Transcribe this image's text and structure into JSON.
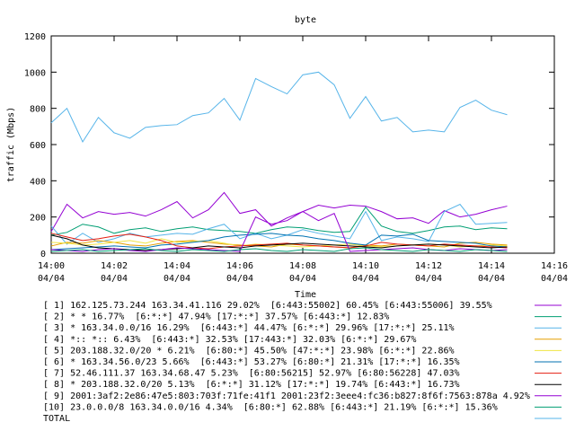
{
  "chart_data": {
    "type": "line",
    "title": "byte",
    "xlabel": "Time",
    "ylabel": "traffic (Mbps)",
    "x": [
      0,
      0.5,
      1,
      1.5,
      2,
      2.5,
      3,
      3.5,
      4,
      4.5,
      5,
      5.5,
      6,
      6.5,
      7,
      7.5,
      8,
      8.5,
      9,
      9.5,
      10,
      10.5,
      11,
      11.5,
      12,
      12.5,
      13,
      13.5,
      14,
      14.5
    ],
    "xlim": [
      0,
      16
    ],
    "xticks": [
      {
        "value": 0,
        "label": "14:00",
        "date": "04/04"
      },
      {
        "value": 2,
        "label": "14:02",
        "date": "04/04"
      },
      {
        "value": 4,
        "label": "14:04",
        "date": "04/04"
      },
      {
        "value": 6,
        "label": "14:06",
        "date": "04/04"
      },
      {
        "value": 8,
        "label": "14:08",
        "date": "04/04"
      },
      {
        "value": 10,
        "label": "14:10",
        "date": "04/04"
      },
      {
        "value": 12,
        "label": "14:12",
        "date": "04/04"
      },
      {
        "value": 14,
        "label": "14:14",
        "date": "04/04"
      },
      {
        "value": 16,
        "label": "14:16",
        "date": "04/04"
      }
    ],
    "ylim": [
      0,
      1200
    ],
    "yticks": [
      0,
      200,
      400,
      600,
      800,
      1000,
      1200
    ],
    "series": [
      {
        "name": "[ 1] 162.125.73.244 163.34.41.116 29.02%  [6:443:55002] 60.45% [6:443:55006] 39.55%",
        "color": "#9400d3",
        "values": [
          120,
          270,
          195,
          230,
          215,
          225,
          205,
          240,
          285,
          195,
          240,
          335,
          220,
          240,
          150,
          195,
          230,
          265,
          250,
          265,
          260,
          230,
          190,
          195,
          165,
          235,
          200,
          215,
          240,
          260
        ]
      },
      {
        "name": "[ 2] * * 16.77%  [6:*:*] 47.94% [17:*:*] 37.57% [6:443:*] 12.83%",
        "color": "#009e73",
        "values": [
          100,
          115,
          160,
          145,
          110,
          130,
          140,
          120,
          135,
          145,
          130,
          125,
          120,
          110,
          130,
          145,
          140,
          125,
          115,
          120,
          255,
          150,
          120,
          110,
          125,
          145,
          150,
          130,
          140,
          135
        ]
      },
      {
        "name": "[ 3] * 163.34.0.0/16 16.29%  [6:443:*] 44.47% [6:*:*] 29.96% [17:*:*] 25.11%",
        "color": "#56b4e9",
        "values": [
          150,
          50,
          110,
          60,
          80,
          110,
          90,
          100,
          110,
          105,
          135,
          160,
          80,
          110,
          80,
          100,
          130,
          110,
          95,
          80,
          230,
          70,
          90,
          80,
          65,
          230,
          270,
          160,
          165,
          170
        ]
      },
      {
        "name": "[ 4] *:: *:: 6.43%  [6:443:*] 32.53% [17:443:*] 32.03% [6:*:*] 29.67%",
        "color": "#e69f00",
        "values": [
          40,
          60,
          55,
          70,
          60,
          45,
          40,
          55,
          65,
          70,
          60,
          50,
          45,
          40,
          35,
          50,
          45,
          40,
          35,
          30,
          45,
          40,
          50,
          45,
          40,
          35,
          55,
          60,
          50,
          45
        ]
      },
      {
        "name": "[ 5] 203.188.32.0/20 * 6.21%  [6:80:*] 45.50% [47:*:*] 23.98% [6:*:*] 22.86%",
        "color": "#f0e442",
        "values": [
          60,
          55,
          45,
          50,
          60,
          70,
          55,
          80,
          60,
          65,
          70,
          55,
          40,
          50,
          45,
          40,
          35,
          40,
          45,
          50,
          40,
          35,
          40,
          45,
          50,
          45,
          35,
          40,
          45,
          40
        ]
      },
      {
        "name": "[ 6] * 163.34.56.0/23 5.66%  [6:443:*] 53.27% [6:80:*] 21.31% [17:*:*] 16.35%",
        "color": "#0072b2",
        "values": [
          20,
          25,
          30,
          35,
          40,
          35,
          30,
          45,
          50,
          60,
          70,
          90,
          100,
          105,
          110,
          100,
          95,
          80,
          70,
          55,
          45,
          100,
          95,
          105,
          70,
          65,
          60,
          55,
          40,
          35
        ]
      },
      {
        "name": "[ 7] 52.46.111.37 163.34.68.47 5.23%  [6:80:56215] 52.97% [6:80:56228] 47.03%",
        "color": "#e51e10",
        "values": [
          110,
          90,
          70,
          80,
          95,
          105,
          90,
          70,
          40,
          30,
          25,
          35,
          40,
          45,
          50,
          55,
          45,
          40,
          35,
          30,
          40,
          60,
          50,
          45,
          40,
          50,
          45,
          40,
          35,
          30
        ]
      },
      {
        "name": "[ 8] * 203.188.32.0/20 5.13%  [6:*:*] 31.12% [17:*:*] 19.74% [6:443:*] 16.73%",
        "color": "#000000",
        "values": [
          100,
          80,
          45,
          30,
          25,
          20,
          15,
          20,
          25,
          30,
          40,
          35,
          30,
          40,
          45,
          50,
          55,
          50,
          45,
          40,
          35,
          30,
          40,
          45,
          50,
          45,
          40,
          35,
          30,
          35
        ]
      },
      {
        "name": "[ 9] 2001:3af2:2e86:47e5:803:703f:71fe:41f1 2001:23f2:3eee4:fc36:b827:8f6f:7563:878a 4.92%",
        "color": "#9400d3",
        "values": [
          20,
          15,
          10,
          20,
          25,
          15,
          10,
          20,
          30,
          25,
          20,
          15,
          10,
          200,
          160,
          180,
          230,
          180,
          220,
          10,
          15,
          20,
          25,
          30,
          20,
          15,
          25,
          20,
          15,
          20
        ]
      },
      {
        "name": "[10] 23.0.0.0/8 163.34.0.0/16 4.34%  [6:80:*] 62.88% [6:443:*] 21.19% [6:*:*] 15.36%",
        "color": "#009e73",
        "values": [
          10,
          15,
          20,
          10,
          15,
          20,
          25,
          15,
          10,
          20,
          15,
          10,
          20,
          25,
          15,
          10,
          20,
          15,
          10,
          25,
          30,
          20,
          15,
          10,
          20,
          15,
          10,
          20,
          15,
          10
        ]
      },
      {
        "name": "TOTAL",
        "color": "#56b4e9",
        "values": [
          720,
          800,
          615,
          750,
          665,
          635,
          695,
          705,
          710,
          760,
          775,
          855,
          735,
          965,
          920,
          880,
          985,
          1000,
          930,
          745,
          865,
          730,
          750,
          670,
          680,
          670,
          805,
          845,
          790,
          765
        ]
      }
    ]
  }
}
